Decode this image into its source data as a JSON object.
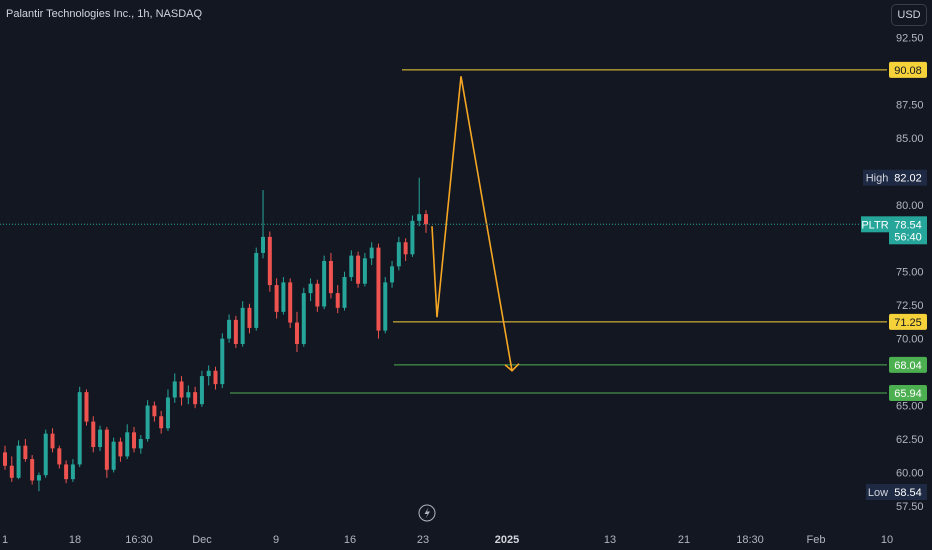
{
  "header": {
    "title": "Palantir Technologies Inc., 1h, NASDAQ",
    "currency": "USD"
  },
  "colors": {
    "background": "#131722",
    "up": "#26a69a",
    "down": "#ef5350",
    "yellow_line": "#f5d13a",
    "orange_path": "#f5a623",
    "green_line": "#4caf50",
    "price_line": "#26a69a",
    "tick_text": "#b2b5be"
  },
  "chart_data": {
    "type": "candlestick",
    "title": "Palantir Technologies Inc., 1h, NASDAQ",
    "ylim": [
      56.0,
      95.0
    ],
    "y_ticks": [
      "92.50",
      "87.50",
      "85.00",
      "80.00",
      "75.00",
      "72.50",
      "70.00",
      "65.00",
      "62.50",
      "60.00",
      "57.50"
    ],
    "x_ticks": [
      {
        "label": "1",
        "bold": false
      },
      {
        "label": "18",
        "bold": false
      },
      {
        "label": "16:30",
        "bold": false
      },
      {
        "label": "Dec",
        "bold": false
      },
      {
        "label": "9",
        "bold": false
      },
      {
        "label": "16",
        "bold": false
      },
      {
        "label": "23",
        "bold": false
      },
      {
        "label": "2025",
        "bold": true
      },
      {
        "label": "13",
        "bold": false
      },
      {
        "label": "21",
        "bold": false
      },
      {
        "label": "18:30",
        "bold": false
      },
      {
        "label": "Feb",
        "bold": false
      },
      {
        "label": "10",
        "bold": false
      }
    ],
    "price_tags": {
      "high": {
        "label": "High",
        "value": "82.02"
      },
      "symbol": {
        "label": "PLTR",
        "value": "78.54",
        "sub": "56:40"
      },
      "low": {
        "label": "Low",
        "value": "58.54"
      }
    },
    "levels": [
      {
        "value": "90.08",
        "color": "yellow"
      },
      {
        "value": "71.25",
        "color": "yellow"
      },
      {
        "value": "68.04",
        "color": "green"
      },
      {
        "value": "65.94",
        "color": "green"
      }
    ],
    "price_line": 78.54,
    "projection": [
      {
        "t": "Dec 23",
        "price": 78.4
      },
      {
        "t": "Dec 24",
        "price": 71.6
      },
      {
        "t": "Dec 27",
        "price": 89.6
      },
      {
        "t": "Jan 2",
        "price": 67.6
      }
    ],
    "ohlc_path": [
      [
        61.5,
        62.0,
        60.2,
        60.5
      ],
      [
        60.5,
        61.2,
        59.3,
        59.6
      ],
      [
        59.6,
        62.4,
        59.5,
        62.0
      ],
      [
        62.0,
        62.5,
        60.8,
        61.0
      ],
      [
        61.0,
        61.3,
        59.1,
        59.4
      ],
      [
        59.4,
        60.0,
        58.6,
        59.8
      ],
      [
        59.8,
        63.2,
        59.6,
        62.9
      ],
      [
        62.9,
        63.3,
        61.5,
        61.8
      ],
      [
        61.8,
        62.0,
        60.3,
        60.6
      ],
      [
        60.6,
        60.9,
        59.2,
        59.5
      ],
      [
        59.5,
        61.0,
        59.3,
        60.6
      ],
      [
        60.6,
        66.4,
        60.4,
        66.0
      ],
      [
        66.0,
        66.2,
        63.5,
        63.8
      ],
      [
        63.8,
        64.2,
        61.5,
        61.9
      ],
      [
        61.9,
        63.5,
        61.6,
        63.2
      ],
      [
        63.2,
        63.4,
        59.6,
        60.2
      ],
      [
        60.2,
        62.6,
        60.0,
        62.3
      ],
      [
        62.3,
        62.6,
        60.8,
        61.2
      ],
      [
        61.2,
        63.6,
        61.0,
        63.0
      ],
      [
        63.0,
        63.4,
        61.5,
        61.8
      ],
      [
        61.8,
        62.8,
        61.4,
        62.5
      ],
      [
        62.5,
        65.4,
        62.3,
        65.0
      ],
      [
        65.0,
        65.3,
        63.8,
        64.2
      ],
      [
        64.2,
        64.6,
        62.9,
        63.3
      ],
      [
        63.3,
        66.2,
        63.1,
        65.6
      ],
      [
        65.6,
        67.4,
        65.2,
        66.8
      ],
      [
        66.8,
        67.2,
        65.0,
        65.6
      ],
      [
        65.6,
        66.5,
        65.1,
        66.0
      ],
      [
        66.0,
        66.4,
        64.8,
        65.1
      ],
      [
        65.1,
        67.6,
        64.9,
        67.2
      ],
      [
        67.2,
        68.0,
        66.5,
        67.6
      ],
      [
        67.6,
        67.9,
        66.2,
        66.6
      ],
      [
        66.6,
        70.4,
        66.3,
        70.0
      ],
      [
        70.0,
        71.8,
        69.7,
        71.4
      ],
      [
        71.4,
        71.7,
        69.3,
        69.6
      ],
      [
        69.6,
        72.8,
        69.4,
        72.3
      ],
      [
        72.3,
        72.6,
        70.4,
        70.8
      ],
      [
        70.8,
        76.8,
        70.6,
        76.4
      ],
      [
        76.4,
        81.1,
        76.0,
        77.6
      ],
      [
        77.6,
        78.0,
        73.5,
        74.0
      ],
      [
        74.0,
        74.5,
        71.5,
        72.0
      ],
      [
        72.0,
        74.6,
        71.8,
        74.2
      ],
      [
        74.2,
        74.5,
        70.8,
        71.2
      ],
      [
        71.2,
        72.0,
        69.0,
        69.6
      ],
      [
        69.6,
        73.8,
        69.4,
        73.4
      ],
      [
        73.4,
        74.5,
        72.8,
        74.1
      ],
      [
        74.1,
        74.4,
        72.0,
        72.4
      ],
      [
        72.4,
        76.2,
        72.2,
        75.8
      ],
      [
        75.8,
        76.4,
        73.0,
        73.4
      ],
      [
        73.4,
        74.0,
        71.9,
        72.3
      ],
      [
        72.3,
        75.0,
        72.1,
        74.6
      ],
      [
        74.6,
        76.6,
        74.3,
        76.2
      ],
      [
        76.2,
        76.5,
        73.8,
        74.1
      ],
      [
        74.1,
        76.4,
        73.9,
        76.0
      ],
      [
        76.0,
        77.2,
        75.5,
        76.8
      ],
      [
        76.8,
        77.1,
        70.0,
        70.6
      ],
      [
        70.6,
        74.6,
        70.4,
        74.2
      ],
      [
        74.2,
        75.8,
        73.8,
        75.4
      ],
      [
        75.4,
        77.6,
        75.1,
        77.2
      ],
      [
        77.2,
        77.5,
        75.8,
        76.3
      ],
      [
        76.3,
        79.2,
        76.1,
        78.8
      ],
      [
        78.8,
        82.02,
        78.4,
        79.3
      ],
      [
        79.3,
        79.6,
        77.9,
        78.54
      ]
    ]
  }
}
